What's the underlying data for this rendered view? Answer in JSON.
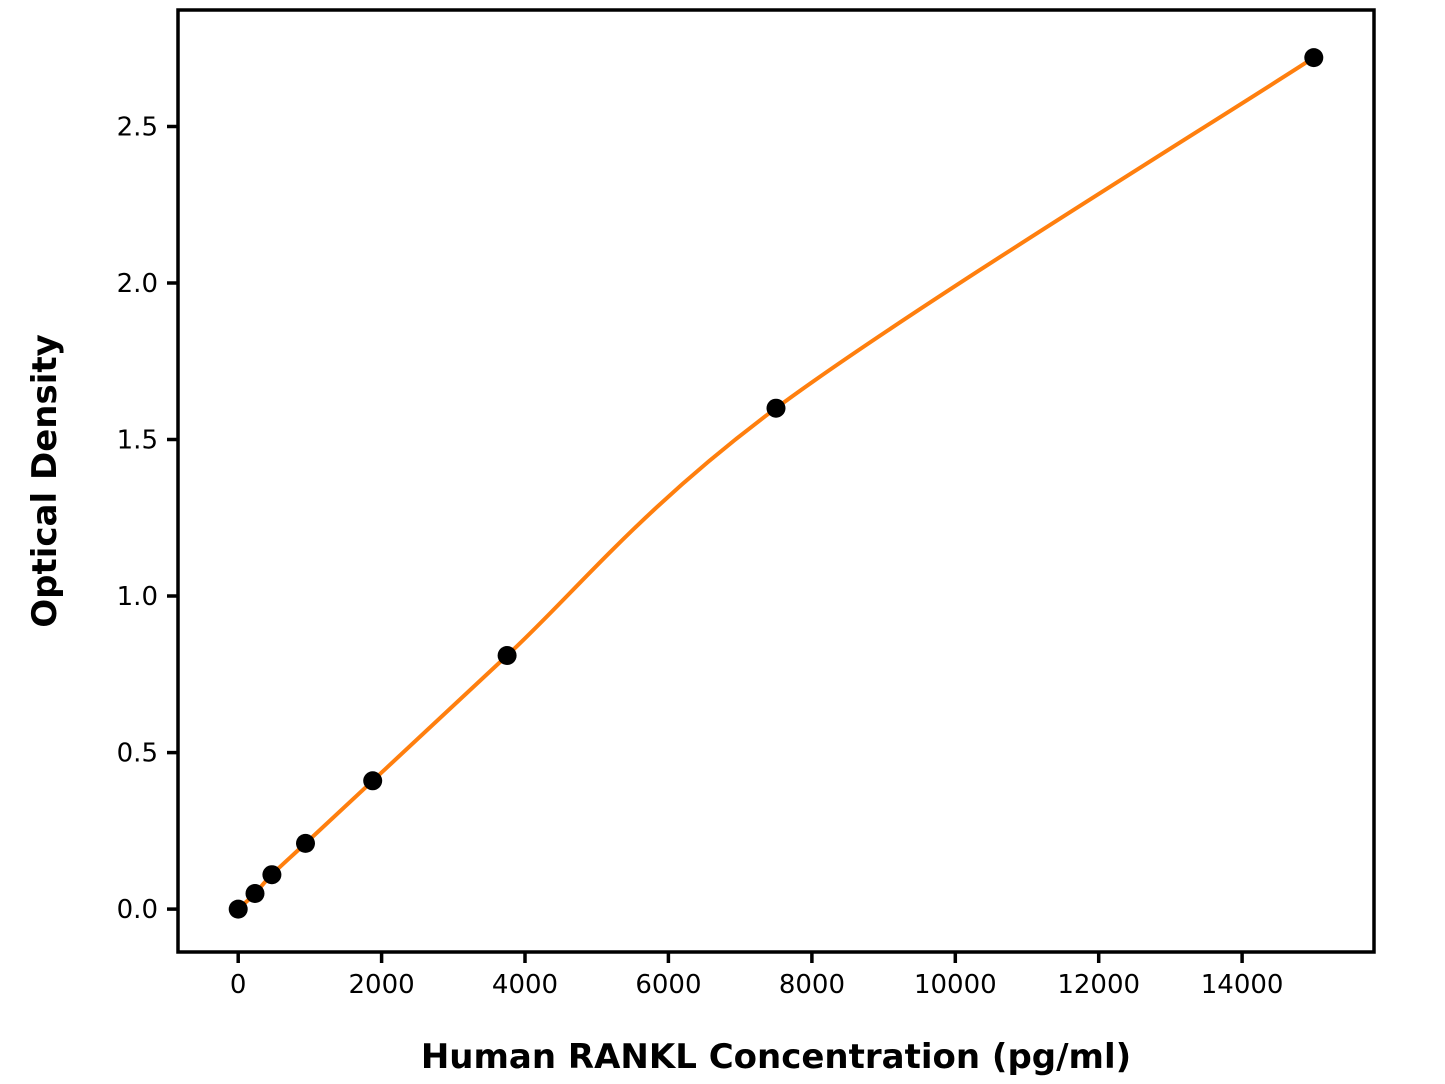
{
  "figure": {
    "background": "#ffffff"
  },
  "chart_data": {
    "type": "scatter",
    "subtype": "scatter-with-fitted-line",
    "title": "",
    "xlabel": "Human RANKL Concentration (pg/ml)",
    "ylabel": "Optical Density",
    "points": [
      {
        "x": 0,
        "y": 0.0
      },
      {
        "x": 234,
        "y": 0.05
      },
      {
        "x": 469,
        "y": 0.11
      },
      {
        "x": 938,
        "y": 0.21
      },
      {
        "x": 1875,
        "y": 0.41
      },
      {
        "x": 3750,
        "y": 0.81
      },
      {
        "x": 7500,
        "y": 1.6
      },
      {
        "x": 15000,
        "y": 2.72
      }
    ],
    "x_ticks": [
      "0",
      "2000",
      "4000",
      "6000",
      "8000",
      "10000",
      "12000",
      "14000"
    ],
    "y_ticks": [
      "0.0",
      "0.5",
      "1.0",
      "1.5",
      "2.0",
      "2.5"
    ],
    "xlim": [
      -840,
      15840
    ],
    "ylim": [
      -0.137,
      2.872
    ],
    "grid": false,
    "legend": null,
    "colors": {
      "line": "#ff7f0e",
      "marker": "#000000",
      "axis": "#000000",
      "background": "#ffffff"
    }
  }
}
